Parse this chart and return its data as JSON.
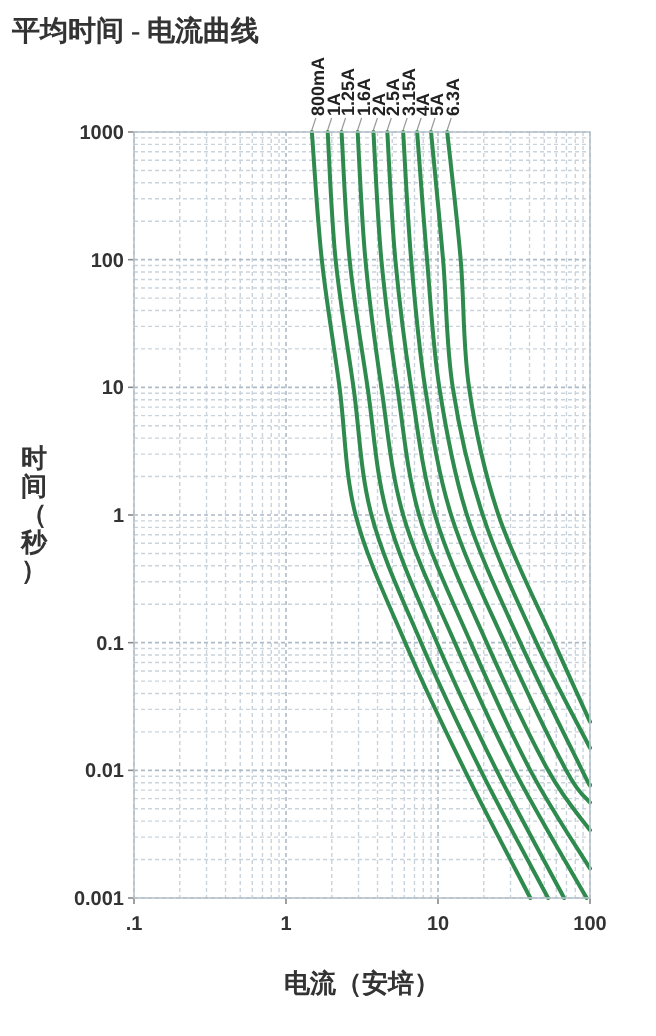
{
  "chart_data": {
    "type": "line",
    "title": "平均时间 - 电流曲线",
    "xlabel": "电流（安培）",
    "ylabel": "时间（秒）",
    "log": "xy",
    "grid": true,
    "legend": false,
    "line_style": "solid",
    "marker": "none",
    "xlim": [
      0.1,
      100
    ],
    "xticks": [
      {
        "value": 0.1,
        "label": ".1"
      },
      1,
      10,
      100
    ],
    "ylim": [
      0.001,
      1000
    ],
    "yticks": [
      1000,
      100,
      10,
      1,
      0.1,
      0.01,
      0.001
    ],
    "series": [
      {
        "name": "800mA",
        "color": "#2f8a4e",
        "x": [
          1.48,
          1.72,
          2.25,
          2.87,
          6.09,
          15.0,
          40.5
        ],
        "values": [
          1000,
          100,
          10,
          1,
          0.1,
          0.01,
          0.001
        ]
      },
      {
        "name": "1A",
        "color": "#2f8a4e",
        "x": [
          1.88,
          2.12,
          2.78,
          3.65,
          7.74,
          19.1,
          53
        ],
        "values": [
          1000,
          100,
          10,
          1,
          0.1,
          0.01,
          0.001
        ]
      },
      {
        "name": "1.25A",
        "color": "#2f8a4e",
        "x": [
          2.32,
          2.62,
          3.44,
          4.64,
          9.85,
          24.3,
          67.6
        ],
        "values": [
          1000,
          100,
          10,
          1,
          0.1,
          0.01,
          0.001
        ]
      },
      {
        "name": "1.6A",
        "color": "#2f8a4e",
        "x": [
          2.96,
          3.33,
          4.24,
          5.9,
          12.9,
          31.8,
          95
        ],
        "values": [
          1000,
          100,
          10,
          1,
          0.1,
          0.01,
          0.001
        ]
      },
      {
        "name": "2A",
        "color": "#2f8a4e",
        "x": [
          3.76,
          4.24,
          5.4,
          7.51,
          16.4,
          40.5,
          100
        ],
        "values": [
          1000,
          100,
          10,
          1,
          0.1,
          0.01,
          0.0017
        ]
      },
      {
        "name": "2.5A",
        "color": "#2f8a4e",
        "x": [
          4.64,
          5.24,
          6.66,
          9.55,
          20.9,
          53,
          100
        ],
        "values": [
          1000,
          100,
          10,
          1,
          0.1,
          0.01,
          0.0034
        ]
      },
      {
        "name": "3.15A",
        "color": "#2f8a4e",
        "x": [
          5.9,
          6.66,
          8.22,
          12.2,
          27.4,
          69.7,
          100
        ],
        "values": [
          1000,
          100,
          10,
          1,
          0.1,
          0.01,
          0.0056
        ]
      },
      {
        "name": "4A",
        "color": "#2f8a4e",
        "x": [
          7.29,
          8.47,
          10.2,
          15.5,
          34.8,
          88.7,
          100
        ],
        "values": [
          1000,
          100,
          10,
          1,
          0.1,
          0.01,
          0.0077
        ]
      },
      {
        "name": "5A",
        "color": "#2f8a4e",
        "x": [
          9.0,
          10.8,
          12.5,
          19.7,
          44.4,
          100
        ],
        "values": [
          1000,
          100,
          10,
          1,
          0.1,
          0.015
        ]
      },
      {
        "name": "6.3A",
        "color": "#2f8a4e",
        "x": [
          11.5,
          14.1,
          16.0,
          25.0,
          58.2,
          100
        ],
        "values": [
          1000,
          100,
          10,
          1,
          0.1,
          0.024
        ]
      }
    ]
  }
}
